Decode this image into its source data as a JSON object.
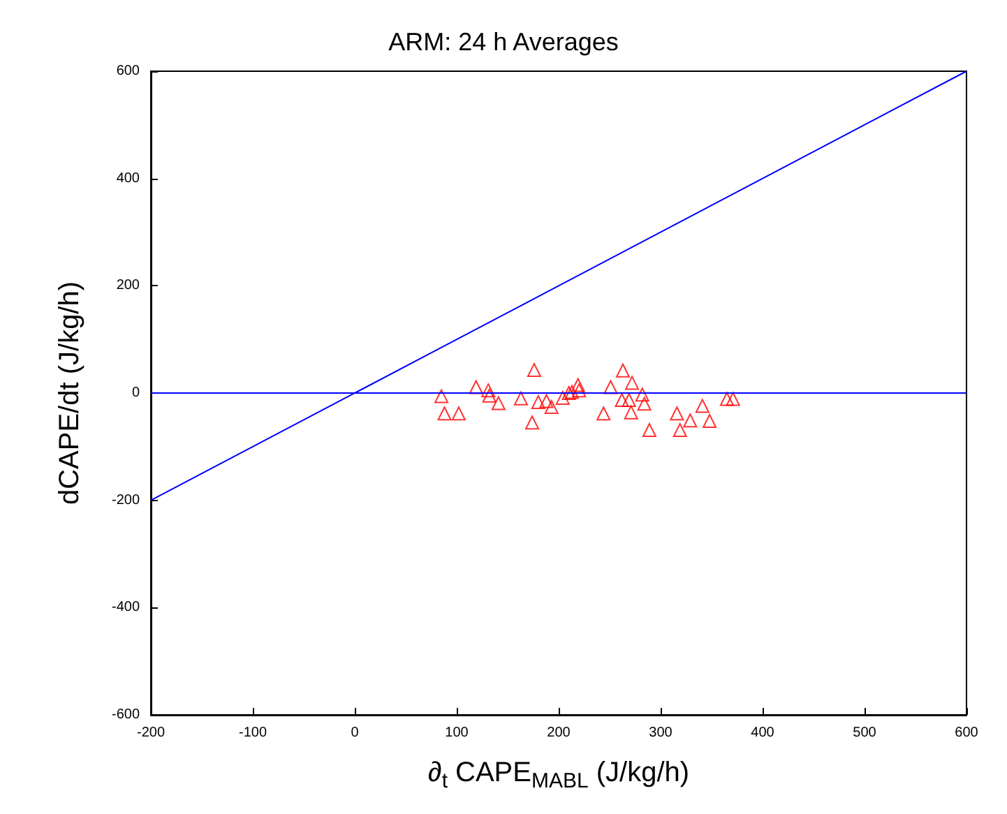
{
  "chart_data": {
    "type": "scatter",
    "title": "ARM: 24 h Averages",
    "xlabel": "∂$_{t}$ CAPE$_{MABL}$ (J/kg/h)",
    "ylabel": "dCAPE/dt (J/kg/h)",
    "xlim": [
      -200,
      600
    ],
    "xticks": [
      -200,
      -100,
      0,
      100,
      200,
      300,
      400,
      500,
      600
    ],
    "ylim": [
      -600,
      600
    ],
    "yticks": [
      -600,
      -400,
      -200,
      0,
      200,
      400,
      600
    ],
    "grid": false,
    "ref_lines": [
      {
        "axis": "y",
        "value": 0,
        "color": "#0000ff"
      }
    ],
    "series": [
      {
        "color": "#ff0000",
        "marker": "triangle",
        "x": [
          85,
          88,
          102,
          119,
          131,
          132,
          141,
          176,
          163,
          174,
          180,
          188,
          193,
          204,
          210,
          213,
          219,
          220,
          251,
          244,
          263,
          272,
          262,
          269,
          271,
          282,
          284,
          289,
          316,
          319,
          329,
          341,
          348,
          365,
          371
        ],
        "values": [
          -6,
          -38,
          -38,
          11,
          5,
          -5,
          -19,
          43,
          -10,
          -55,
          -17,
          -15,
          -26,
          -9,
          0,
          2,
          15,
          5,
          11,
          -38,
          42,
          19,
          -13,
          -13,
          -36,
          -3,
          -20,
          -69,
          -38,
          -69,
          -51,
          -24,
          -52,
          -11,
          -11
        ]
      },
      {
        "type": "line",
        "color": "#0000ff",
        "marker": "none",
        "x": [
          -200,
          600
        ],
        "values": [
          -200,
          600
        ]
      }
    ]
  }
}
